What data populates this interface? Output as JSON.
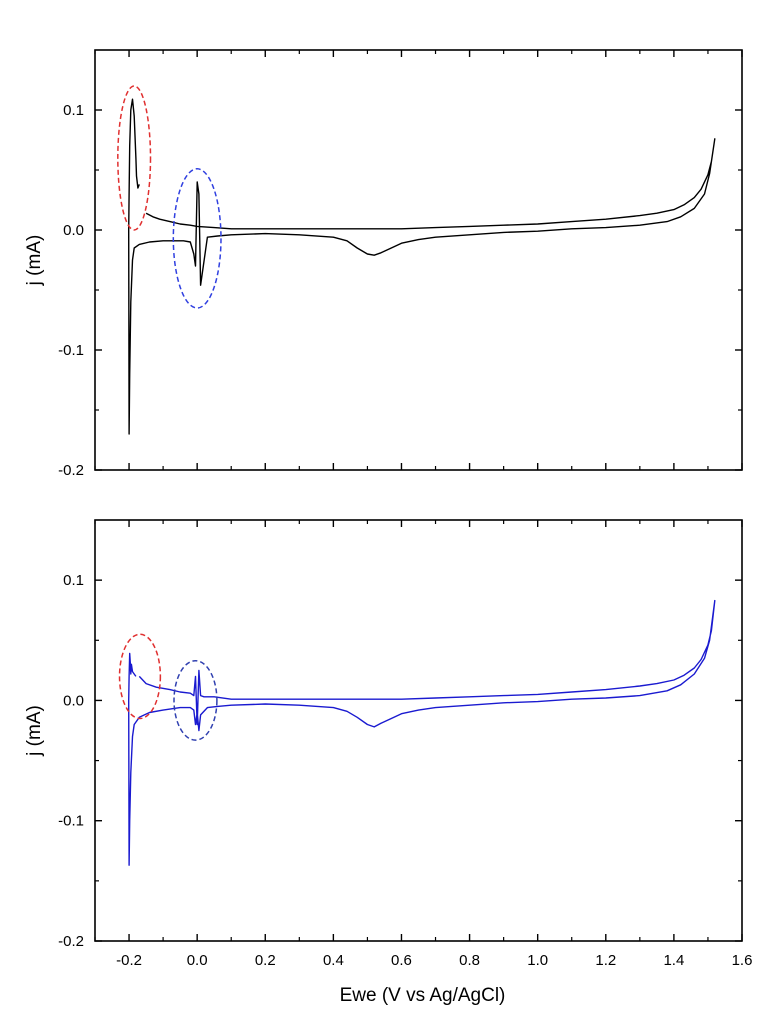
{
  "chart_data": [
    {
      "type": "line",
      "ylabel": "j (mA)",
      "xlabel": "",
      "xlim": [
        -0.3,
        1.6
      ],
      "ylim": [
        -0.2,
        0.15
      ],
      "yticks": [
        "0.1",
        "0.0",
        "-0.1",
        "-0.2"
      ],
      "yticks_values": [
        0.1,
        0.0,
        -0.1,
        -0.2
      ],
      "xticks_values": [
        -0.2,
        0.0,
        0.2,
        0.4,
        0.6,
        0.8,
        1.0,
        1.2,
        1.4,
        1.6
      ],
      "series": [
        {
          "color": "#000000",
          "x": [
            -0.15,
            -0.13,
            -0.11,
            -0.08,
            -0.05,
            -0.02,
            0.0,
            0.05,
            0.1,
            0.2,
            0.3,
            0.4,
            0.5,
            0.6,
            0.7,
            0.8,
            0.9,
            1.0,
            1.1,
            1.2,
            1.3,
            1.35,
            1.4,
            1.43,
            1.46,
            1.48,
            1.5,
            1.51,
            1.52,
            1.505,
            1.49,
            1.46,
            1.42,
            1.38,
            1.3,
            1.2,
            1.1,
            1.0,
            0.9,
            0.8,
            0.7,
            0.65,
            0.6,
            0.57,
            0.54,
            0.52,
            0.5,
            0.47,
            0.44,
            0.4,
            0.3,
            0.2,
            0.1,
            0.06,
            0.03,
            0.01,
            0.005,
            0.0,
            -0.005,
            -0.01,
            -0.02,
            -0.04,
            -0.06,
            -0.1,
            -0.14,
            -0.17,
            -0.185,
            -0.19,
            -0.195,
            -0.198,
            -0.2,
            -0.201,
            -0.2,
            -0.198,
            -0.195,
            -0.19,
            -0.185,
            -0.18,
            -0.178,
            -0.176,
            -0.174,
            -0.17
          ],
          "y": [
            0.014,
            0.011,
            0.009,
            0.007,
            0.005,
            0.004,
            0.003,
            0.002,
            0.001,
            0.001,
            0.001,
            0.001,
            0.001,
            0.001,
            0.002,
            0.003,
            0.004,
            0.005,
            0.007,
            0.009,
            0.012,
            0.014,
            0.017,
            0.021,
            0.027,
            0.034,
            0.046,
            0.057,
            0.076,
            0.047,
            0.03,
            0.018,
            0.011,
            0.007,
            0.004,
            0.002,
            0.001,
            -0.001,
            -0.002,
            -0.004,
            -0.006,
            -0.008,
            -0.011,
            -0.015,
            -0.019,
            -0.021,
            -0.02,
            -0.015,
            -0.009,
            -0.006,
            -0.004,
            -0.003,
            -0.004,
            -0.005,
            -0.006,
            -0.046,
            0.03,
            0.04,
            -0.03,
            -0.02,
            -0.01,
            -0.009,
            -0.009,
            -0.009,
            -0.01,
            -0.012,
            -0.015,
            -0.025,
            -0.06,
            -0.12,
            -0.17,
            0.0,
            0.03,
            0.07,
            0.1,
            0.109,
            0.095,
            0.06,
            0.045,
            0.04,
            0.035,
            0.038
          ]
        }
      ],
      "annotations": [
        {
          "shape": "dashed-ellipse",
          "color": "#e03030",
          "cx": -0.185,
          "cy": 0.06,
          "rx": 0.048,
          "ry": 0.06
        },
        {
          "shape": "dashed-ellipse",
          "color": "#3040e0",
          "cx": 0.0,
          "cy": -0.007,
          "rx": 0.07,
          "ry": 0.058
        }
      ]
    },
    {
      "type": "line",
      "ylabel": "j (mA)",
      "xlabel": "Ewe (V vs Ag/AgCl)",
      "xlim": [
        -0.3,
        1.6
      ],
      "ylim": [
        -0.2,
        0.15
      ],
      "yticks": [
        "0.1",
        "0.0",
        "-0.1",
        "-0.2"
      ],
      "yticks_values": [
        0.1,
        0.0,
        -0.1,
        -0.2
      ],
      "xticks": [
        "-0.2",
        "0.0",
        "0.2",
        "0.4",
        "0.6",
        "0.8",
        "1.0",
        "1.2",
        "1.4",
        "1.6"
      ],
      "xticks_values": [
        -0.2,
        0.0,
        0.2,
        0.4,
        0.6,
        0.8,
        1.0,
        1.2,
        1.4,
        1.6
      ],
      "series": [
        {
          "color": "#1a1ad0",
          "x": [
            -0.17,
            -0.15,
            -0.12,
            -0.08,
            -0.05,
            -0.02,
            -0.01,
            -0.005,
            0.0,
            0.005,
            0.01,
            0.02,
            0.05,
            0.1,
            0.2,
            0.3,
            0.4,
            0.5,
            0.6,
            0.7,
            0.8,
            0.9,
            1.0,
            1.1,
            1.2,
            1.3,
            1.35,
            1.4,
            1.43,
            1.46,
            1.48,
            1.5,
            1.51,
            1.52,
            1.505,
            1.49,
            1.46,
            1.42,
            1.38,
            1.3,
            1.2,
            1.1,
            1.0,
            0.9,
            0.8,
            0.7,
            0.65,
            0.6,
            0.57,
            0.54,
            0.52,
            0.5,
            0.47,
            0.44,
            0.4,
            0.3,
            0.2,
            0.1,
            0.06,
            0.03,
            0.01,
            0.005,
            0.0,
            -0.005,
            -0.01,
            -0.02,
            -0.05,
            -0.1,
            -0.14,
            -0.17,
            -0.185,
            -0.19,
            -0.195,
            -0.198,
            -0.2,
            -0.201,
            -0.2,
            -0.198,
            -0.196,
            -0.195,
            -0.193,
            -0.19,
            -0.185,
            -0.18
          ],
          "y": [
            0.02,
            0.014,
            0.011,
            0.009,
            0.007,
            0.006,
            0.004,
            0.02,
            -0.02,
            0.025,
            0.004,
            0.003,
            0.003,
            0.001,
            0.001,
            0.001,
            0.001,
            0.001,
            0.001,
            0.002,
            0.003,
            0.004,
            0.005,
            0.007,
            0.009,
            0.012,
            0.014,
            0.017,
            0.021,
            0.027,
            0.034,
            0.046,
            0.058,
            0.083,
            0.05,
            0.035,
            0.022,
            0.013,
            0.008,
            0.004,
            0.002,
            0.001,
            -0.001,
            -0.002,
            -0.004,
            -0.006,
            -0.008,
            -0.011,
            -0.015,
            -0.019,
            -0.022,
            -0.02,
            -0.014,
            -0.009,
            -0.006,
            -0.004,
            -0.003,
            -0.004,
            -0.005,
            -0.006,
            -0.012,
            -0.025,
            -0.01,
            -0.02,
            -0.008,
            -0.006,
            -0.006,
            -0.008,
            -0.01,
            -0.014,
            -0.02,
            -0.03,
            -0.06,
            -0.1,
            -0.137,
            0.0,
            0.02,
            0.039,
            0.03,
            0.022,
            0.03,
            0.024,
            0.022,
            0.02
          ]
        }
      ],
      "annotations": [
        {
          "shape": "dashed-ellipse",
          "color": "#e03030",
          "cx": -0.168,
          "cy": 0.02,
          "rx": 0.06,
          "ry": 0.035
        },
        {
          "shape": "dashed-ellipse",
          "color": "#3040b0",
          "cx": -0.005,
          "cy": 0.0,
          "rx": 0.063,
          "ry": 0.033
        }
      ]
    }
  ]
}
